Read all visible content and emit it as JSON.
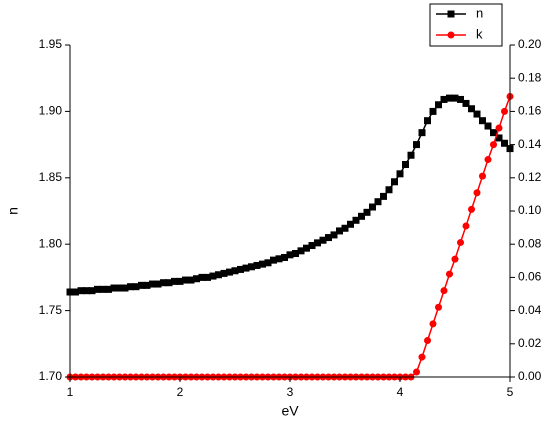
{
  "chart_data": {
    "type": "line",
    "xlabel": "eV",
    "ylabel": "n",
    "x": [
      1,
      1.05,
      1.1,
      1.15,
      1.2,
      1.25,
      1.3,
      1.35,
      1.4,
      1.45,
      1.5,
      1.55,
      1.6,
      1.65,
      1.7,
      1.75,
      1.8,
      1.85,
      1.9,
      1.95,
      2,
      2.05,
      2.1,
      2.15,
      2.2,
      2.25,
      2.3,
      2.35,
      2.4,
      2.45,
      2.5,
      2.55,
      2.6,
      2.65,
      2.7,
      2.75,
      2.8,
      2.85,
      2.9,
      2.95,
      3,
      3.05,
      3.1,
      3.15,
      3.2,
      3.25,
      3.3,
      3.35,
      3.4,
      3.45,
      3.5,
      3.55,
      3.6,
      3.65,
      3.7,
      3.75,
      3.8,
      3.85,
      3.9,
      3.95,
      4,
      4.05,
      4.1,
      4.15,
      4.2,
      4.25,
      4.3,
      4.35,
      4.4,
      4.45,
      4.5,
      4.55,
      4.6,
      4.65,
      4.7,
      4.75,
      4.8,
      4.85,
      4.9,
      4.95,
      5
    ],
    "series": [
      {
        "name": "n",
        "color": "#000000",
        "marker": "square",
        "axis": "y",
        "values": [
          1.764,
          1.764,
          1.765,
          1.765,
          1.765,
          1.766,
          1.766,
          1.766,
          1.767,
          1.767,
          1.767,
          1.768,
          1.768,
          1.769,
          1.769,
          1.77,
          1.77,
          1.771,
          1.771,
          1.772,
          1.772,
          1.773,
          1.773,
          1.774,
          1.775,
          1.775,
          1.776,
          1.777,
          1.778,
          1.779,
          1.78,
          1.781,
          1.782,
          1.783,
          1.784,
          1.785,
          1.786,
          1.788,
          1.789,
          1.79,
          1.792,
          1.793,
          1.795,
          1.797,
          1.799,
          1.801,
          1.803,
          1.805,
          1.807,
          1.81,
          1.812,
          1.815,
          1.818,
          1.821,
          1.824,
          1.828,
          1.832,
          1.836,
          1.841,
          1.847,
          1.853,
          1.86,
          1.867,
          1.875,
          1.884,
          1.893,
          1.9,
          1.905,
          1.909,
          1.91,
          1.91,
          1.909,
          1.906,
          1.902,
          1.898,
          1.893,
          1.889,
          1.884,
          1.88,
          1.876,
          1.872
        ]
      },
      {
        "name": "k",
        "color": "#ff0000",
        "marker": "circle",
        "axis": "y2",
        "values": [
          0,
          0,
          0,
          0,
          0,
          0,
          0,
          0,
          0,
          0,
          0,
          0,
          0,
          0,
          0,
          0,
          0,
          0,
          0,
          0,
          0,
          0,
          0,
          0,
          0,
          0,
          0,
          0,
          0,
          0,
          0,
          0,
          0,
          0,
          0,
          0,
          0,
          0,
          0,
          0,
          0,
          0,
          0,
          0,
          0,
          0,
          0,
          0,
          0,
          0,
          0,
          0,
          0,
          0,
          0,
          0,
          0,
          0,
          0,
          0,
          0,
          0,
          0,
          0.003,
          0.012,
          0.022,
          0.032,
          0.042,
          0.052,
          0.062,
          0.071,
          0.081,
          0.091,
          0.101,
          0.111,
          0.121,
          0.131,
          0.14,
          0.15,
          0.16,
          0.169
        ]
      }
    ],
    "xlim": [
      1,
      5
    ],
    "xticks": [
      1,
      2,
      3,
      4,
      5
    ],
    "ylim": [
      1.7,
      1.95
    ],
    "yticks": [
      {
        "value": 1.7,
        "label": "1.70"
      },
      {
        "value": 1.75,
        "label": "1.75"
      },
      {
        "value": 1.8,
        "label": "1.80"
      },
      {
        "value": 1.85,
        "label": "1.85"
      },
      {
        "value": 1.9,
        "label": "1.90"
      },
      {
        "value": 1.95,
        "label": "1.95"
      }
    ],
    "y2lim": [
      0,
      0.2
    ],
    "y2ticks": [
      {
        "value": 0,
        "label": "0.00"
      },
      {
        "value": 0.02,
        "label": "0.02"
      },
      {
        "value": 0.04,
        "label": "0.04"
      },
      {
        "value": 0.06,
        "label": "0.06"
      },
      {
        "value": 0.08,
        "label": "0.08"
      },
      {
        "value": 0.1,
        "label": "0.10"
      },
      {
        "value": 0.12,
        "label": "0.12"
      },
      {
        "value": 0.14,
        "label": "0.14"
      },
      {
        "value": 0.16,
        "label": "0.16"
      },
      {
        "value": 0.18,
        "label": "0.18"
      },
      {
        "value": 0.2,
        "label": "0.20"
      }
    ],
    "legend": "upper right"
  }
}
